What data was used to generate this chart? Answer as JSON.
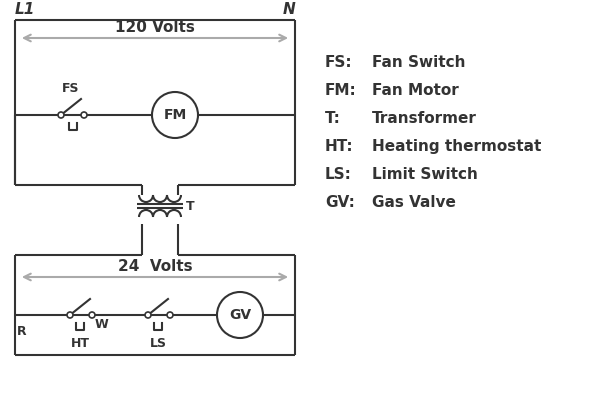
{
  "bg_color": "#ffffff",
  "line_color": "#333333",
  "arrow_color": "#aaaaaa",
  "legend": [
    [
      "FS:",
      "Fan Switch"
    ],
    [
      "FM:",
      "Fan Motor"
    ],
    [
      "T:",
      "Transformer"
    ],
    [
      "HT:",
      "Heating thermostat"
    ],
    [
      "LS:",
      "Limit Switch"
    ],
    [
      "GV:",
      "Gas Valve"
    ]
  ],
  "volts_120": "120 Volts",
  "volts_24": "24  Volts",
  "L1_label": "L1",
  "N_label": "N",
  "T_label": "T",
  "R_label": "R",
  "W_label": "W",
  "HT_label": "HT",
  "LS_label": "LS",
  "FS_label": "FS",
  "FM_label": "FM",
  "GV_label": "GV"
}
